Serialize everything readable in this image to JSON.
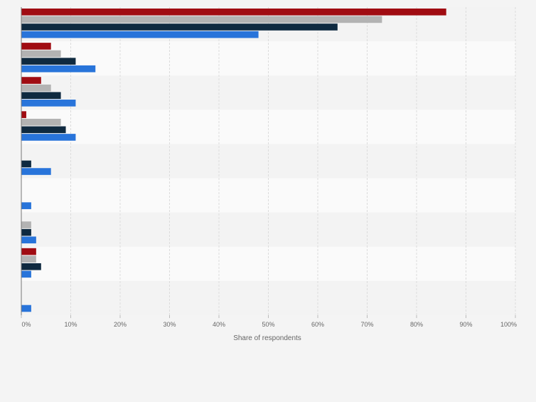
{
  "chart_data": {
    "type": "bar",
    "orientation": "horizontal",
    "categories": [
      "",
      "",
      "",
      "",
      "",
      "",
      "",
      "",
      ""
    ],
    "series": [
      {
        "name": "",
        "color": "#a00c12",
        "values": [
          86,
          6,
          4,
          1,
          0,
          0,
          0,
          3,
          0
        ]
      },
      {
        "name": "",
        "color": "#b3b3b3",
        "values": [
          73,
          8,
          6,
          8,
          0,
          0,
          2,
          3,
          0
        ]
      },
      {
        "name": "",
        "color": "#0f2a40",
        "values": [
          64,
          11,
          8,
          9,
          2,
          0,
          2,
          4,
          0
        ]
      },
      {
        "name": "",
        "color": "#2874da",
        "values": [
          48,
          15,
          11,
          11,
          6,
          2,
          3,
          2,
          2
        ]
      }
    ],
    "x_ticks": [
      "0%",
      "10%",
      "20%",
      "30%",
      "40%",
      "50%",
      "60%",
      "70%",
      "80%",
      "90%",
      "100%"
    ],
    "xlim": [
      0,
      100
    ],
    "xlabel": "Share of respondents",
    "ylabel": "",
    "title": "",
    "grid": true,
    "legend": "none"
  }
}
